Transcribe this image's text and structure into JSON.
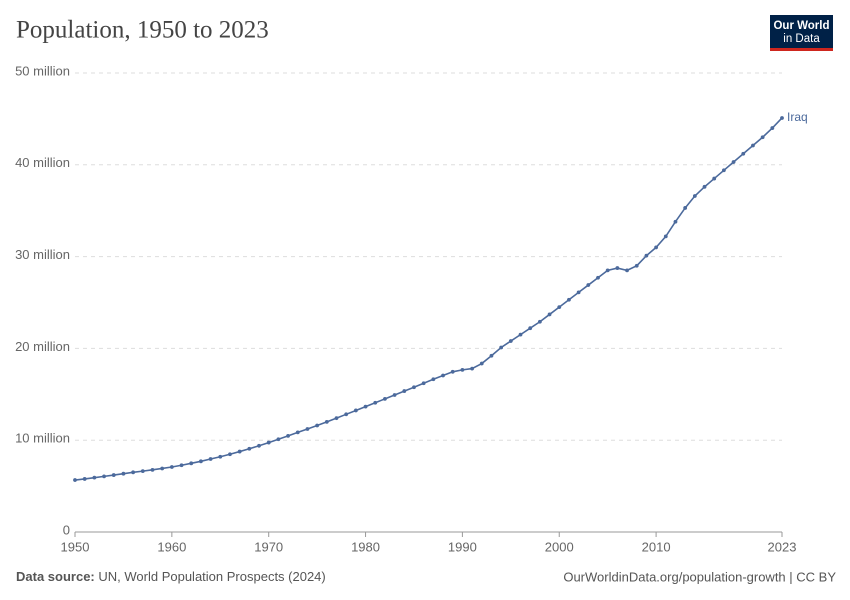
{
  "chart_data": {
    "type": "line",
    "title": "Population, 1950 to 2023",
    "logo": [
      "Our World",
      "in Data"
    ],
    "x": [
      1950,
      1951,
      1952,
      1953,
      1954,
      1955,
      1956,
      1957,
      1958,
      1959,
      1960,
      1961,
      1962,
      1963,
      1964,
      1965,
      1966,
      1967,
      1968,
      1969,
      1970,
      1971,
      1972,
      1973,
      1974,
      1975,
      1976,
      1977,
      1978,
      1979,
      1980,
      1981,
      1982,
      1983,
      1984,
      1985,
      1986,
      1987,
      1988,
      1989,
      1990,
      1991,
      1992,
      1993,
      1994,
      1995,
      1996,
      1997,
      1998,
      1999,
      2000,
      2001,
      2002,
      2003,
      2004,
      2005,
      2006,
      2007,
      2008,
      2009,
      2010,
      2011,
      2012,
      2013,
      2014,
      2015,
      2016,
      2017,
      2018,
      2019,
      2020,
      2021,
      2022,
      2023
    ],
    "series": [
      {
        "name": "Iraq",
        "color": "#4c6a9c",
        "values": [
          5.66,
          5.78,
          5.92,
          6.06,
          6.2,
          6.35,
          6.5,
          6.63,
          6.77,
          6.92,
          7.08,
          7.27,
          7.48,
          7.7,
          7.95,
          8.2,
          8.47,
          8.76,
          9.07,
          9.39,
          9.74,
          10.1,
          10.47,
          10.85,
          11.22,
          11.6,
          12.0,
          12.4,
          12.82,
          13.24,
          13.66,
          14.08,
          14.5,
          14.92,
          15.35,
          15.77,
          16.2,
          16.64,
          17.05,
          17.45,
          17.66,
          17.8,
          18.35,
          19.2,
          20.1,
          20.8,
          21.5,
          22.2,
          22.9,
          23.7,
          24.5,
          25.3,
          26.1,
          26.9,
          27.7,
          28.5,
          28.75,
          28.5,
          29.0,
          30.1,
          31.0,
          32.2,
          33.8,
          35.3,
          36.6,
          37.6,
          38.5,
          39.4,
          40.3,
          41.2,
          42.1,
          43.0,
          44.0,
          45.1
        ]
      }
    ],
    "xlim": [
      1950,
      2023
    ],
    "xticks": [
      1950,
      1960,
      1970,
      1980,
      1990,
      2000,
      2010,
      2023
    ],
    "ylim": [
      0,
      50
    ],
    "yticks": [
      0,
      {
        "value": 10,
        "label": "10 million"
      },
      {
        "value": 20,
        "label": "20 million"
      },
      {
        "value": 30,
        "label": "30 million"
      },
      {
        "value": 40,
        "label": "40 million"
      },
      {
        "value": 50,
        "label": "50 million"
      }
    ],
    "grid": true,
    "source_label": "Data source:",
    "source": "UN, World Population Prospects (2024)",
    "footer_right": "OurWorldinData.org/population-growth | CC BY"
  }
}
